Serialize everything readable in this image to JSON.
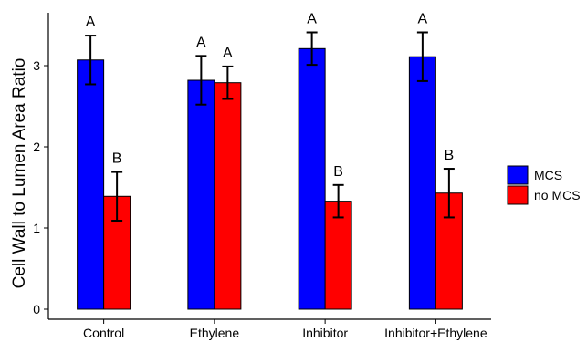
{
  "chart_data": {
    "type": "bar",
    "categories": [
      "Control",
      "Ethylene",
      "Inhibitor",
      "Inhibitor+Ethylene"
    ],
    "ylabel": "Cell Wall to Lumen Area Ratio",
    "xlabel": "",
    "ylim": [
      0,
      3.5
    ],
    "yticks": [
      0,
      1,
      2,
      3
    ],
    "grid": false,
    "legend": "right",
    "series": [
      {
        "name": "MCS",
        "color": "#0000ff",
        "values": [
          3.07,
          2.82,
          3.21,
          3.11
        ],
        "errors": [
          0.3,
          0.3,
          0.2,
          0.3
        ],
        "letters": [
          "A",
          "A",
          "A",
          "A"
        ]
      },
      {
        "name": "no MCS",
        "color": "#ff0000",
        "values": [
          1.39,
          2.79,
          1.33,
          1.43
        ],
        "errors": [
          0.3,
          0.2,
          0.2,
          0.3
        ],
        "letters": [
          "B",
          "A",
          "B",
          "B"
        ]
      }
    ]
  }
}
